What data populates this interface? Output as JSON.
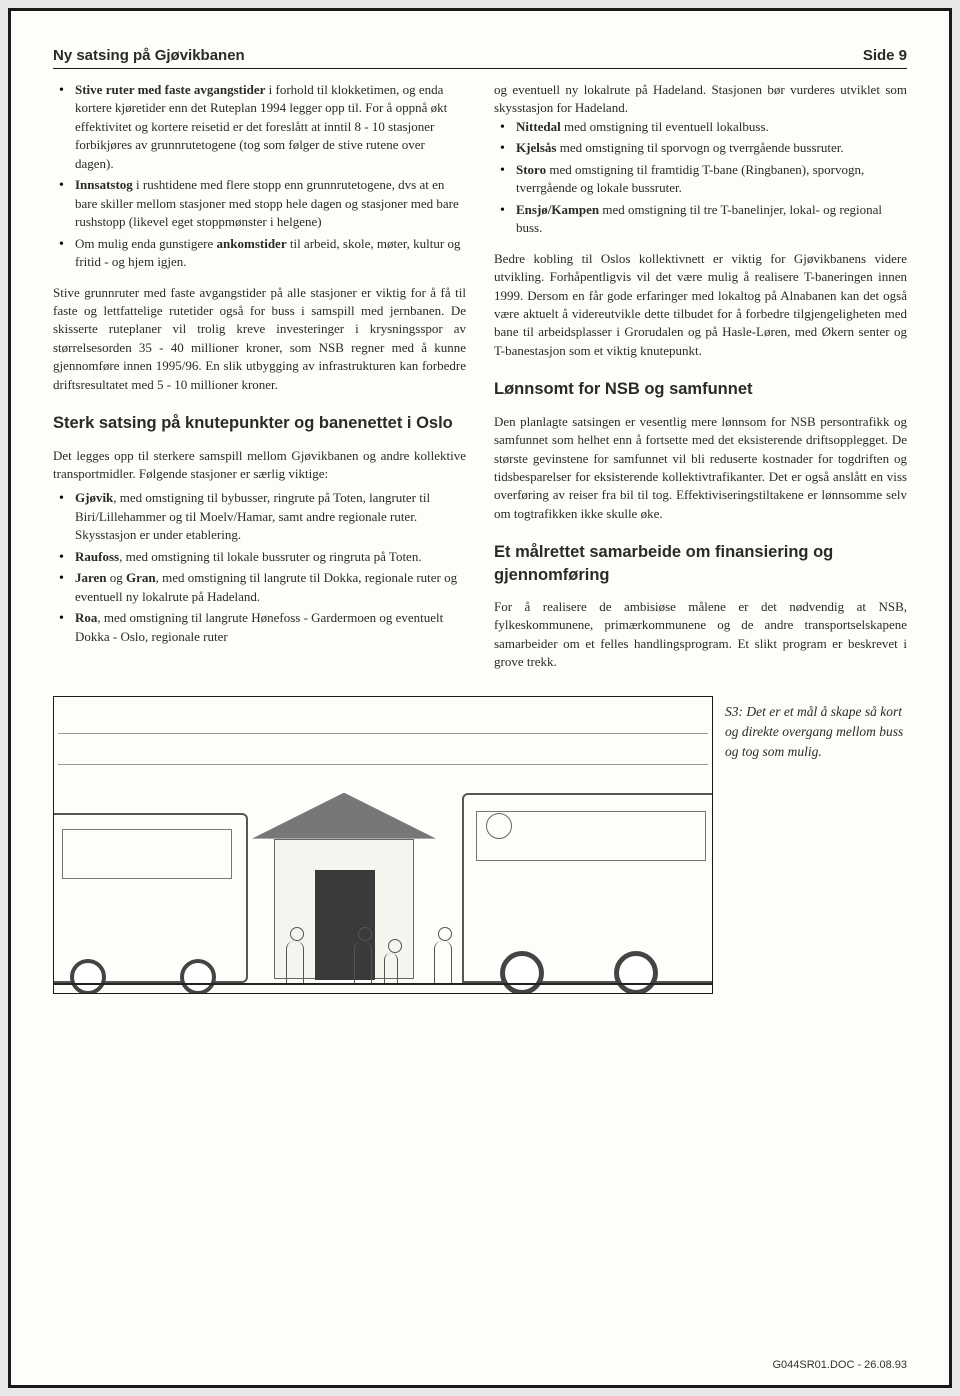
{
  "header": {
    "title": "Ny satsing på Gjøvikbanen",
    "page": "Side 9"
  },
  "left": {
    "bullets_top": [
      "<b>Stive ruter med faste avgangstider</b> i forhold til klokketimen, og enda kortere kjøretider enn det Ruteplan 1994 legger opp til. For å oppnå økt effektivitet og kortere reisetid er det foreslått at inntil 8 - 10 stasjoner forbikjøres av grunnrutetogene (tog som følger de stive rutene over dagen).",
      "<b>Innsatstog</b> i rushtidene med flere stopp enn grunnrutetogene, dvs at en bare skiller mellom stasjoner med stopp hele dagen og stasjoner med bare rushstopp (likevel eget stoppmønster i helgene)",
      "Om mulig enda gunstigere <b>ankomstider</b> til arbeid, skole, møter, kultur og fritid - og hjem igjen."
    ],
    "para1": "Stive grunnruter med faste avgangstider på alle stasjoner er viktig for å få til faste og lettfattelige rutetider også for buss i samspill med jernbanen. De skisserte ruteplaner vil trolig kreve investeringer i krysningsspor av størrelsesorden 35 - 40 millioner kroner, som NSB regner med å kunne gjennomføre innen 1995/96. En slik utbygging av infrastrukturen kan forbedre driftsresultatet med 5 - 10 millioner kroner.",
    "heading1": "Sterk satsing på knutepunkter og banenettet i Oslo",
    "para2": "Det legges opp til sterkere samspill mellom Gjøvikbanen og andre kollektive transportmidler. Følgende stasjoner er særlig viktige:",
    "bullets_stations": [
      "<b>Gjøvik</b>, med omstigning til bybusser, ringrute på Toten, langruter til Biri/Lillehammer og til Moelv/Hamar, samt andre regionale ruter. Skysstasjon er under etablering.",
      "<b>Raufoss</b>, med omstigning til lokale bussruter og ringruta på Toten.",
      "<b>Jaren</b> og <b>Gran</b>, med omstigning til langrute til Dokka, regionale ruter og eventuell ny lokalrute på Hadeland.",
      "<b>Roa</b>, med omstigning til langrute Hønefoss - Gardermoen og eventuelt Dokka - Oslo, regionale ruter"
    ]
  },
  "right": {
    "continuation": "og eventuell ny lokalrute på Hadeland. Stasjonen bør vurderes utviklet som skysstasjon for Hadeland.",
    "bullets_oslo": [
      "<b>Nittedal</b> med omstigning til eventuell lokalbuss.",
      "<b>Kjelsås</b> med omstigning til sporvogn og tverrgående bussruter.",
      "<b>Storo</b> med omstigning til framtidig T-bane (Ringbanen), sporvogn, tverrgående og lokale bussruter.",
      "<b>Ensjø/Kampen</b> med omstigning til tre T-banelinjer, lokal- og regional buss."
    ],
    "para1": "Bedre kobling til Oslos kollektivnett er viktig for Gjøvikbanens videre utvikling. Forhåpentligvis vil det være mulig å realisere T-baneringen innen 1999. Dersom en får gode erfaringer med lokaltog på Alnabanen kan det også være aktuelt å videreutvikle dette tilbudet for å forbedre tilgjengeligheten med bane til arbeidsplasser i Grorudalen og på Hasle-Løren, med Økern senter og T-banestasjon som et viktig knutepunkt.",
    "heading1": "Lønnsomt for NSB og samfunnet",
    "para2": "Den planlagte satsingen er vesentlig mere lønnsom for NSB persontrafikk og samfunnet som helhet enn å fortsette med det eksisterende driftsopplegget. De største gevinstene for samfunnet vil bli reduserte kostnader for togdriften og tidsbesparelser for eksisterende kollektivtrafikanter. Det er også anslått en viss overføring av reiser fra bil til tog. Effektiviseringstiltakene er lønnsomme selv om togtrafikken ikke skulle øke.",
    "heading2": "Et målrettet samarbeide om finansiering og gjennomføring",
    "para3": "For å realisere de ambisiøse målene er det nødvendig at NSB, fylkeskommunene, primærkommunene og de andre transportselskapene samarbeider om et felles handlingsprogram. Et slikt program er beskrevet i grove trekk."
  },
  "figure_caption": "S3: Det er et mål å skape så kort og direkte overgang mellom buss og tog som mulig.",
  "footer": "G044SR01.DOC - 26.08.93"
}
